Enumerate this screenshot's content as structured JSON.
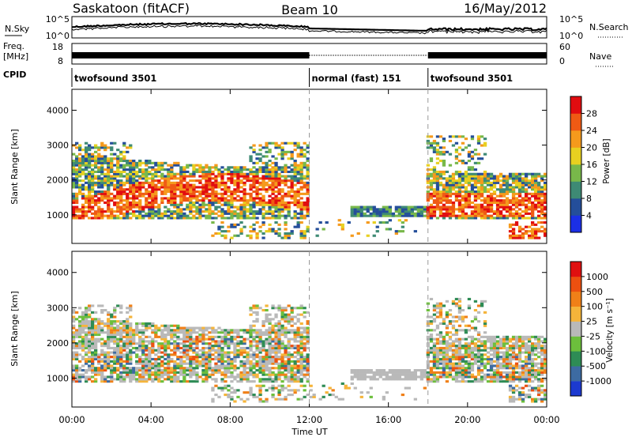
{
  "header": {
    "station": "Saskatoon (fitACF)",
    "beam": "Beam 10",
    "date": "16/May/2012"
  },
  "noise_panel": {
    "left_label": "N.Sky",
    "left_ticks": [
      "10^5",
      "10^0"
    ],
    "right_label": "N.Search",
    "right_ticks": [
      "10^5",
      "10^0"
    ]
  },
  "freq_panel": {
    "left_label_line1": "Freq.",
    "left_label_line2": "[MHz]",
    "left_ticks": [
      "18",
      "8"
    ],
    "right_label": "Nave",
    "right_ticks": [
      "60",
      "0"
    ]
  },
  "cpid_panel": {
    "label": "CPID",
    "segments": [
      {
        "name": "twofsound 3501",
        "start_hour": 0,
        "end_hour": 12
      },
      {
        "name": "normal (fast) 151",
        "start_hour": 12,
        "end_hour": 18
      },
      {
        "name": "twofsound 3501",
        "start_hour": 18,
        "end_hour": 24
      }
    ]
  },
  "x_axis": {
    "label": "Time UT",
    "range_hours": [
      0,
      24
    ],
    "tick_hours": [
      0,
      4,
      8,
      12,
      16,
      20,
      24
    ],
    "tick_labels": [
      "00:00",
      "04:00",
      "08:00",
      "12:00",
      "16:00",
      "20:00",
      "00:00"
    ]
  },
  "chart_data": [
    {
      "type": "heatmap",
      "name": "power",
      "ylabel": "Slant Range [km]",
      "ylim": [
        180,
        4600
      ],
      "yticks": [
        1000,
        2000,
        3000,
        4000
      ],
      "colorbar": {
        "label": "Power [dB]",
        "ticks": [
          "4",
          "8",
          "12",
          "16",
          "20",
          "24",
          "28"
        ],
        "colors": [
          "#1b2fe6",
          "#244e9a",
          "#3e8a74",
          "#78b84a",
          "#e8d020",
          "#f59a1c",
          "#ef5a14",
          "#e10c10"
        ],
        "range": [
          0,
          32
        ]
      }
    },
    {
      "type": "heatmap",
      "name": "velocity",
      "ylabel": "Slant Range [km]",
      "ylim": [
        180,
        4600
      ],
      "yticks": [
        1000,
        2000,
        3000,
        4000
      ],
      "ground_scatter_color": "#b9b9b9",
      "colorbar": {
        "label": "Velocity [m s⁻¹]",
        "ticks": [
          "1000",
          "500",
          "100",
          "25",
          "-25",
          "-100",
          "-500",
          "-1000"
        ],
        "colors": [
          "#1c3ad0",
          "#3d6ba2",
          "#2e8c55",
          "#6cbf3c",
          "#b9b9b9",
          "#f5b43a",
          "#f08018",
          "#ec5010",
          "#e01010"
        ],
        "range": [
          -1250,
          1250
        ]
      }
    }
  ]
}
